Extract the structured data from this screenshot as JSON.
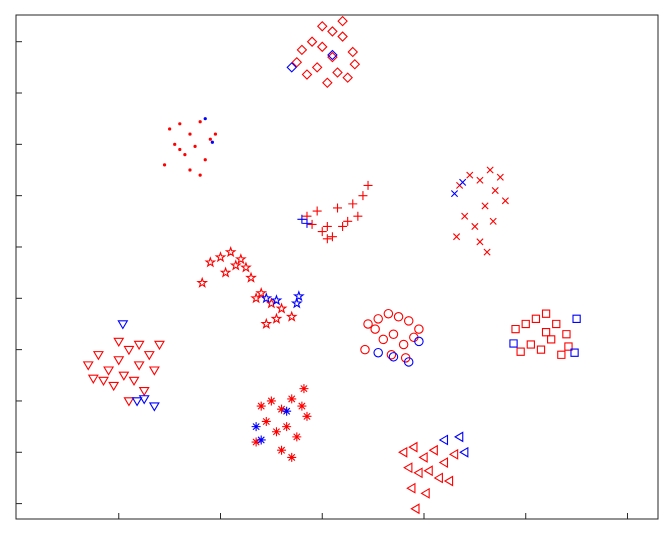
{
  "chart_data": {
    "type": "scatter",
    "xlim": [
      -40.1,
      23
    ],
    "xticks": [
      -30,
      -20,
      -10,
      0,
      10,
      20
    ],
    "ylim": [
      -26.5,
      22.6
    ],
    "yticks": [
      -25,
      -20,
      -15,
      -10,
      -5,
      0,
      5,
      10,
      15,
      20
    ],
    "series": [
      {
        "marker": "diamond",
        "color": "#ff0000",
        "x": [
          -12.5,
          -11,
          -10,
          -9,
          -8,
          -7,
          -10.5,
          -9.5,
          -8.5,
          -7.5,
          -11.5,
          -9,
          -8,
          -10,
          -6.8,
          -12
        ],
        "y": [
          18,
          20,
          21.5,
          21,
          20.5,
          19,
          17.5,
          16,
          17,
          16.5,
          16.8,
          18.5,
          22,
          19.5,
          17.8,
          19.2
        ]
      },
      {
        "marker": "diamond",
        "color": "#0000ff",
        "x": [
          -13,
          -9
        ],
        "y": [
          17.5,
          18.7
        ]
      },
      {
        "marker": "point",
        "color": "#ff0000",
        "x": [
          -25,
          -24,
          -23,
          -22,
          -21,
          -24.5,
          -23.5,
          -22.5,
          -21.5,
          -25.5,
          -23,
          -22,
          -24,
          -20.5
        ],
        "y": [
          11.5,
          12,
          11,
          12.2,
          10.5,
          10,
          9,
          9.8,
          8.5,
          8,
          7.5,
          7,
          9.5,
          11
        ]
      },
      {
        "marker": "point",
        "color": "#0000ff",
        "x": [
          -21.5,
          -20.8
        ],
        "y": [
          12.5,
          10.2
        ]
      },
      {
        "marker": "plus",
        "color": "#ff0000",
        "x": [
          -11.5,
          -10.5,
          -9.5,
          -8.5,
          -7.5,
          -6.5,
          -10,
          -9,
          -8,
          -7,
          -5.5,
          -11,
          -9.5,
          -6
        ],
        "y": [
          3,
          3.5,
          2,
          3.8,
          2.5,
          3,
          1.5,
          1,
          2,
          4.2,
          6,
          2.2,
          0.8,
          5
        ]
      },
      {
        "marker": "plus",
        "color": "#0000ff",
        "x": [
          -12,
          -11.5
        ],
        "y": [
          2.7,
          2.3
        ]
      },
      {
        "marker": "x",
        "color": "#ff0000",
        "x": [
          3.5,
          4.5,
          5.5,
          6.5,
          7.5,
          4,
          5,
          6,
          7,
          5.5,
          6.2,
          3.2,
          8,
          6.8
        ],
        "y": [
          6,
          7,
          6.5,
          7.5,
          6.8,
          3,
          2,
          4,
          5.5,
          0.5,
          -0.5,
          1,
          4.5,
          2.5
        ]
      },
      {
        "marker": "x",
        "color": "#0000ff",
        "x": [
          3,
          3.8
        ],
        "y": [
          5.2,
          6.3
        ]
      },
      {
        "marker": "star",
        "color": "#ff0000",
        "x": [
          -21,
          -20,
          -19,
          -18,
          -17.5,
          -17,
          -16,
          -15,
          -14,
          -13,
          -15.5,
          -19.5,
          -21.8,
          -18.5,
          -14.5,
          -16.5
        ],
        "y": [
          -1.5,
          -1,
          -0.5,
          -1.2,
          -2,
          -3,
          -4.5,
          -5.5,
          -6,
          -6.8,
          -7.5,
          -2.5,
          -3.5,
          -1.8,
          -7,
          -5
        ]
      },
      {
        "marker": "star",
        "color": "#0000ff",
        "x": [
          -15.5,
          -14.5,
          -12.3,
          -12.5
        ],
        "y": [
          -5,
          -5.2,
          -4.8,
          -5.5
        ]
      },
      {
        "marker": "circle",
        "color": "#ff0000",
        "x": [
          -5.5,
          -4.5,
          -3.5,
          -2.5,
          -1.5,
          -0.5,
          -4,
          -3,
          -2,
          -1,
          -5.8,
          -3.2,
          -1.8,
          -4.8
        ],
        "y": [
          -7.5,
          -7,
          -6.5,
          -6.8,
          -7.2,
          -8,
          -9,
          -8.5,
          -9.5,
          -8.8,
          -10,
          -10.5,
          -10.8,
          -8
        ]
      },
      {
        "marker": "circle",
        "color": "#0000ff",
        "x": [
          -4.5,
          -3,
          -1.5,
          -0.5
        ],
        "y": [
          -10.3,
          -10.7,
          -11.2,
          -9.2
        ]
      },
      {
        "marker": "square",
        "color": "#ff0000",
        "x": [
          9,
          10,
          11,
          12,
          13,
          14,
          10.5,
          11.5,
          12.5,
          13.5,
          9.5,
          12,
          14.2
        ],
        "y": [
          -8,
          -7.5,
          -7,
          -6.5,
          -7.5,
          -8.5,
          -9.5,
          -10,
          -9,
          -10.5,
          -10.2,
          -8.3,
          -9.7
        ]
      },
      {
        "marker": "square",
        "color": "#0000ff",
        "x": [
          8.8,
          14.8,
          15
        ],
        "y": [
          -9.4,
          -10.3,
          -7
        ]
      },
      {
        "marker": "triangle-down",
        "color": "#ff0000",
        "x": [
          -33,
          -32,
          -31,
          -30,
          -29,
          -28,
          -27,
          -26,
          -31.5,
          -30.5,
          -29.5,
          -28.5,
          -27.5,
          -32.5,
          -30,
          -28,
          -26.5,
          -29
        ],
        "y": [
          -11.5,
          -10.5,
          -12,
          -11,
          -10,
          -11.5,
          -10.5,
          -9.5,
          -13,
          -13.5,
          -12.5,
          -13,
          -14,
          -12.8,
          -9.2,
          -9.5,
          -12,
          -15
        ]
      },
      {
        "marker": "triangle-down",
        "color": "#0000ff",
        "x": [
          -29.6,
          -28.2,
          -26.5,
          -27.5
        ],
        "y": [
          -7.5,
          -15,
          -15.5,
          -14.8
        ]
      },
      {
        "marker": "asterisk",
        "color": "#ff0000",
        "x": [
          -16,
          -15,
          -14,
          -13,
          -12,
          -11.5,
          -15.5,
          -14.5,
          -13.5,
          -12.5,
          -16.5,
          -14,
          -13,
          -11.8
        ],
        "y": [
          -15.5,
          -15,
          -15.8,
          -14.8,
          -15.5,
          -16.5,
          -17,
          -18,
          -17.5,
          -18.5,
          -19,
          -19.8,
          -20.5,
          -13.8
        ]
      },
      {
        "marker": "asterisk",
        "color": "#0000ff",
        "x": [
          -16.5,
          -16,
          -13.5
        ],
        "y": [
          -17.5,
          -18.8,
          -16
        ]
      },
      {
        "marker": "triangle-left",
        "color": "#ff0000",
        "x": [
          -2,
          -1,
          0,
          1,
          2,
          3,
          -1.5,
          -0.5,
          0.5,
          1.5,
          -1.2,
          0.2,
          -0.8,
          2.5
        ],
        "y": [
          -20,
          -19.5,
          -20.5,
          -19.8,
          -21,
          -20.2,
          -21.5,
          -22,
          -21.8,
          -22.5,
          -23.5,
          -24,
          -25.5,
          -22.8
        ]
      },
      {
        "marker": "triangle-left",
        "color": "#0000ff",
        "x": [
          2,
          3.5,
          4
        ],
        "y": [
          -18.8,
          -18.5,
          -20
        ]
      }
    ]
  }
}
